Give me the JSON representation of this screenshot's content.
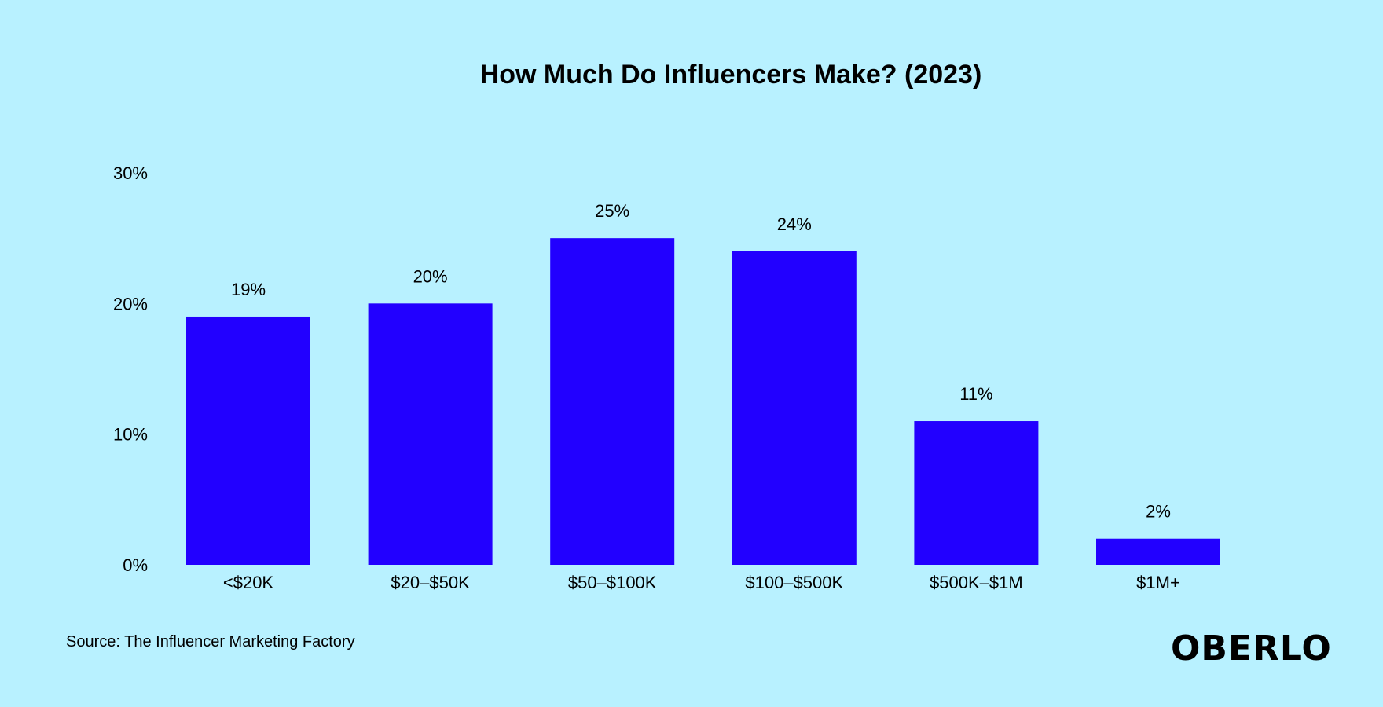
{
  "chart_data": {
    "type": "bar",
    "title": "How Much Do Influencers Make? (2023)",
    "categories": [
      "<$20K",
      "$20–$50K",
      "$50–$100K",
      "$100–$500K",
      "$500K–$1M",
      "$1M+"
    ],
    "values": [
      19,
      20,
      25,
      24,
      11,
      2
    ],
    "value_labels": [
      "19%",
      "20%",
      "25%",
      "24%",
      "11%",
      "2%"
    ],
    "ylim": [
      0,
      30
    ],
    "y_ticks": [
      0,
      10,
      20,
      30
    ],
    "y_tick_labels": [
      "0%",
      "10%",
      "20%",
      "30%"
    ],
    "xlabel": "",
    "ylabel": "",
    "grid": false,
    "legend": "none",
    "bar_color": "#2200ff"
  },
  "footer": {
    "source": "Source: The Influencer Marketing Factory",
    "brand": "OBERLO"
  },
  "colors": {
    "background": "#b8f1ff",
    "bar": "#2200ff",
    "text": "#000000"
  }
}
